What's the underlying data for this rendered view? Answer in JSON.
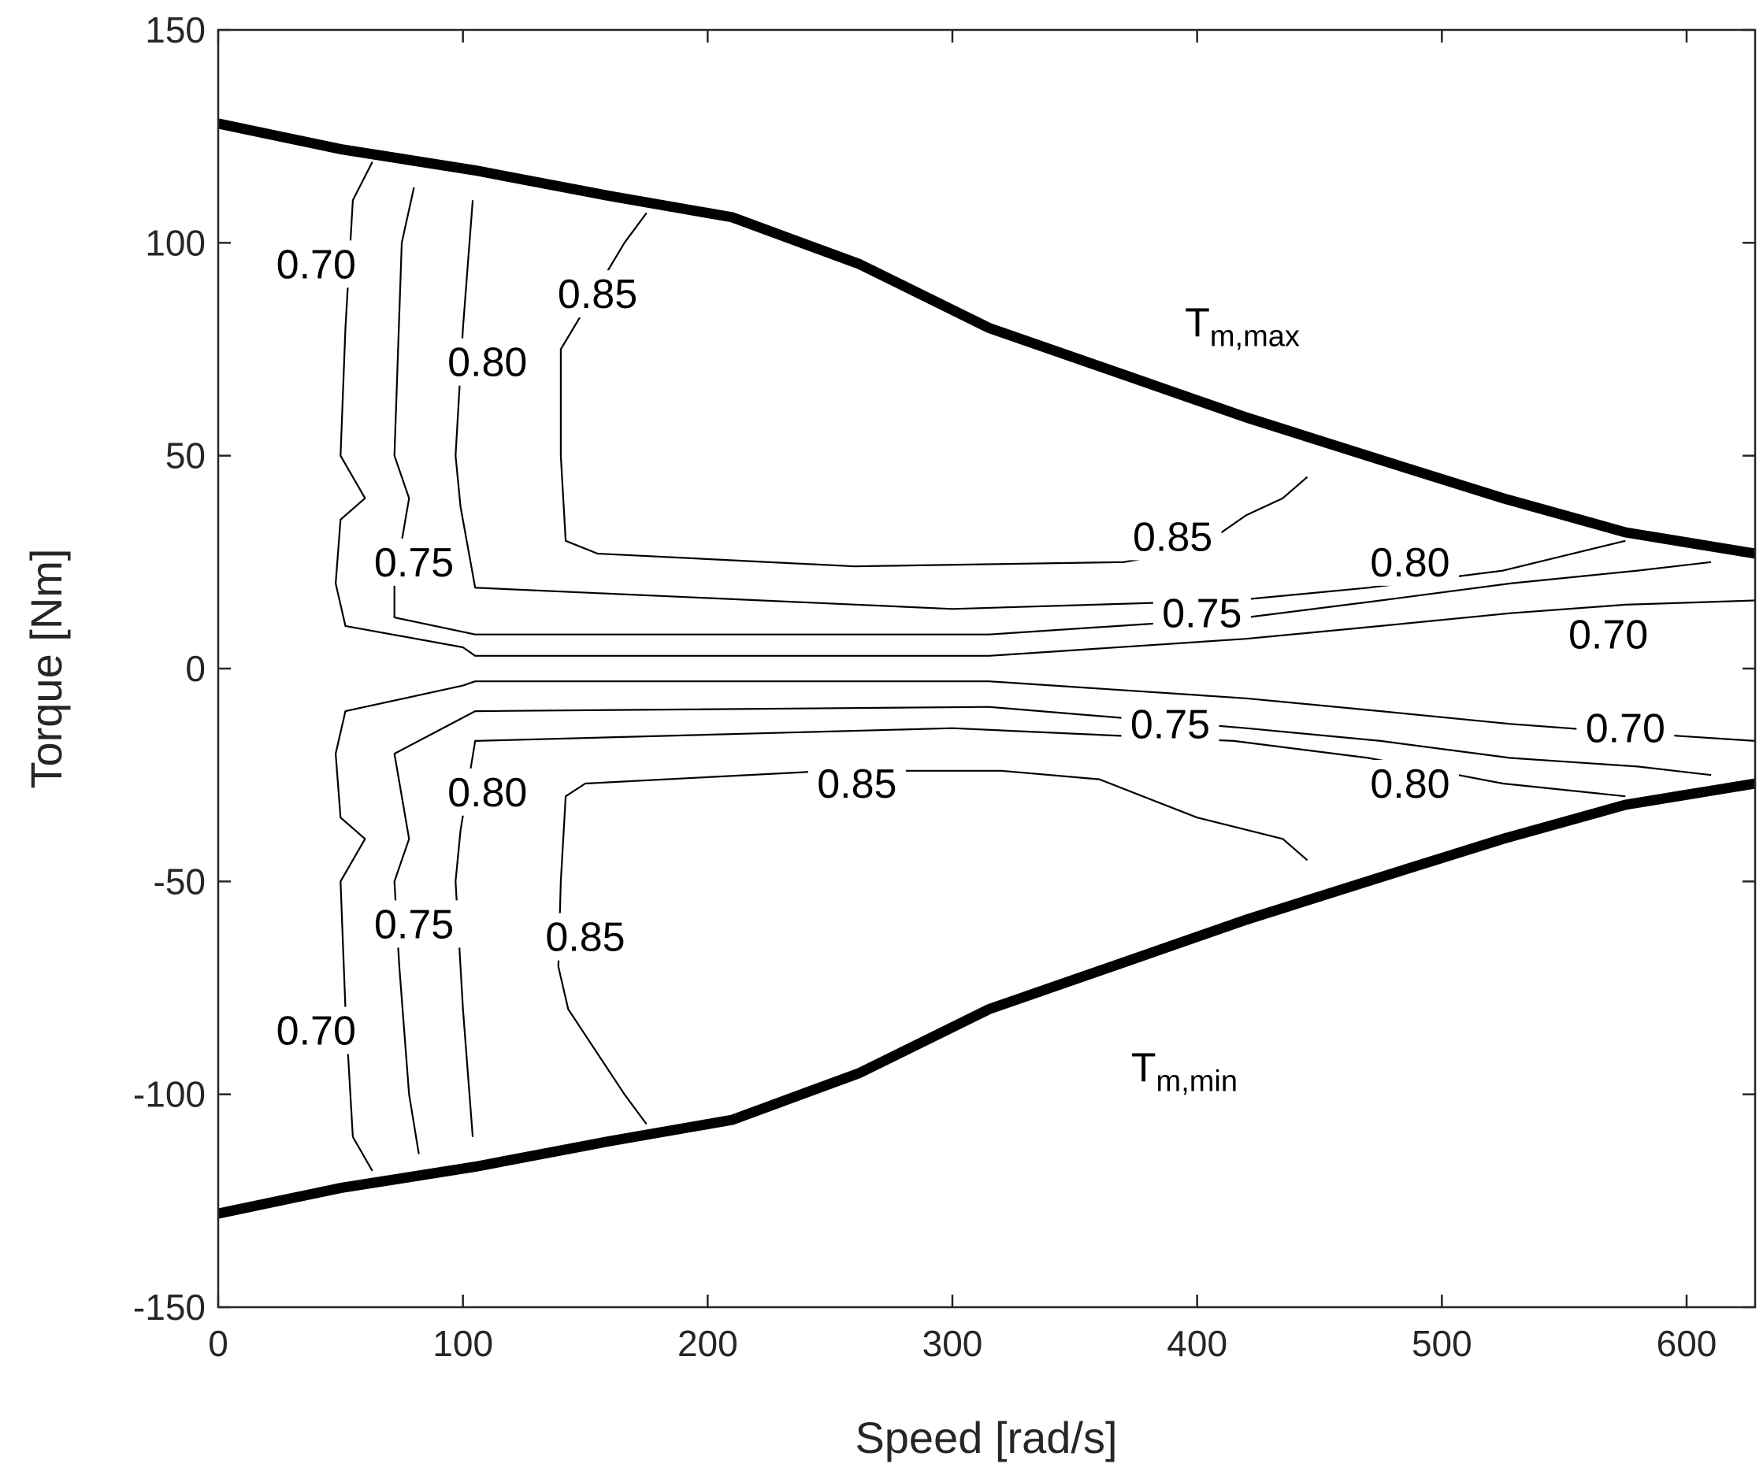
{
  "chart_data": {
    "type": "line",
    "xlabel": "Speed [rad/s]",
    "ylabel": "Torque [Nm]",
    "xlim": [
      0,
      628
    ],
    "ylim": [
      -150,
      150
    ],
    "xticks": [
      0,
      100,
      200,
      300,
      400,
      500,
      600
    ],
    "yticks": [
      -150,
      -100,
      -50,
      0,
      50,
      100,
      150
    ],
    "grid": false,
    "envelope": [
      {
        "name": "T_max",
        "label_main": "T",
        "label_sub": "m,max",
        "label_at": [
          395,
          78
        ],
        "points": [
          [
            0,
            128
          ],
          [
            50,
            122
          ],
          [
            105,
            117
          ],
          [
            160,
            111
          ],
          [
            210,
            106
          ],
          [
            262,
            95
          ],
          [
            315,
            80
          ],
          [
            370,
            69
          ],
          [
            420,
            59
          ],
          [
            475,
            49
          ],
          [
            525,
            40
          ],
          [
            575,
            32
          ],
          [
            628,
            27
          ]
        ]
      },
      {
        "name": "T_min",
        "label_main": "T",
        "label_sub": "m,min",
        "label_at": [
          373,
          -97
        ],
        "points": [
          [
            0,
            -128
          ],
          [
            50,
            -122
          ],
          [
            105,
            -117
          ],
          [
            160,
            -111
          ],
          [
            210,
            -106
          ],
          [
            262,
            -95
          ],
          [
            315,
            -80
          ],
          [
            370,
            -69
          ],
          [
            420,
            -59
          ],
          [
            475,
            -49
          ],
          [
            525,
            -40
          ],
          [
            575,
            -32
          ],
          [
            628,
            -27
          ]
        ]
      }
    ],
    "contours": [
      {
        "level": "0.70",
        "points": [
          [
            63,
            119
          ],
          [
            55,
            110
          ],
          [
            52,
            80
          ],
          [
            50,
            50
          ],
          [
            60,
            40
          ],
          [
            50,
            35
          ],
          [
            48,
            20
          ],
          [
            52,
            10
          ],
          [
            100,
            5
          ],
          [
            105,
            3
          ],
          [
            315,
            3
          ],
          [
            420,
            7
          ],
          [
            475,
            10
          ],
          [
            528,
            13
          ],
          [
            575,
            15
          ],
          [
            628,
            16
          ]
        ]
      },
      {
        "level": "0.75",
        "points": [
          [
            80,
            113
          ],
          [
            75,
            100
          ],
          [
            72,
            50
          ],
          [
            78,
            40
          ],
          [
            72,
            20
          ],
          [
            72,
            12
          ],
          [
            105,
            8
          ],
          [
            315,
            8
          ],
          [
            420,
            12
          ],
          [
            475,
            16
          ],
          [
            528,
            20
          ],
          [
            580,
            23
          ],
          [
            610,
            25
          ]
        ]
      },
      {
        "level": "0.80",
        "points": [
          [
            104,
            110
          ],
          [
            100,
            80
          ],
          [
            97,
            50
          ],
          [
            99,
            38
          ],
          [
            105,
            19
          ],
          [
            300,
            14
          ],
          [
            415,
            16
          ],
          [
            470,
            19
          ],
          [
            525,
            23
          ],
          [
            575,
            30
          ]
        ]
      },
      {
        "level": "0.85",
        "points": [
          [
            175,
            107
          ],
          [
            166,
            100
          ],
          [
            140,
            75
          ],
          [
            140,
            50
          ],
          [
            142,
            30
          ],
          [
            155,
            27
          ],
          [
            260,
            24
          ],
          [
            370,
            25
          ],
          [
            400,
            28
          ],
          [
            420,
            36
          ],
          [
            435,
            40
          ],
          [
            445,
            45
          ]
        ]
      },
      {
        "level": "0.70",
        "points": [
          [
            63,
            -118
          ],
          [
            55,
            -110
          ],
          [
            52,
            -80
          ],
          [
            50,
            -50
          ],
          [
            60,
            -40
          ],
          [
            50,
            -35
          ],
          [
            48,
            -20
          ],
          [
            52,
            -10
          ],
          [
            100,
            -4
          ],
          [
            105,
            -3
          ],
          [
            315,
            -3
          ],
          [
            420,
            -7
          ],
          [
            475,
            -10
          ],
          [
            528,
            -13
          ],
          [
            575,
            -15
          ],
          [
            628,
            -17
          ]
        ]
      },
      {
        "level": "0.75",
        "points": [
          [
            82,
            -114
          ],
          [
            78,
            -100
          ],
          [
            74,
            -70
          ],
          [
            72,
            -50
          ],
          [
            78,
            -40
          ],
          [
            72,
            -20
          ],
          [
            105,
            -10
          ],
          [
            315,
            -9
          ],
          [
            420,
            -14
          ],
          [
            475,
            -17
          ],
          [
            528,
            -21
          ],
          [
            580,
            -23
          ],
          [
            610,
            -25
          ]
        ]
      },
      {
        "level": "0.80",
        "points": [
          [
            104,
            -110
          ],
          [
            100,
            -80
          ],
          [
            97,
            -50
          ],
          [
            99,
            -38
          ],
          [
            105,
            -17
          ],
          [
            300,
            -14
          ],
          [
            415,
            -17
          ],
          [
            470,
            -21
          ],
          [
            525,
            -27
          ],
          [
            575,
            -30
          ]
        ]
      },
      {
        "level": "0.85",
        "points": [
          [
            175,
            -107
          ],
          [
            166,
            -100
          ],
          [
            143,
            -80
          ],
          [
            139,
            -70
          ],
          [
            140,
            -50
          ],
          [
            142,
            -30
          ],
          [
            150,
            -27
          ],
          [
            250,
            -24
          ],
          [
            320,
            -24
          ],
          [
            360,
            -26
          ],
          [
            400,
            -35
          ],
          [
            435,
            -40
          ],
          [
            445,
            -45
          ]
        ]
      }
    ],
    "contour_labels": [
      {
        "text": "0.70",
        "x": 40,
        "y": 95
      },
      {
        "text": "0.80",
        "x": 110,
        "y": 72
      },
      {
        "text": "0.85",
        "x": 155,
        "y": 88
      },
      {
        "text": "0.75",
        "x": 80,
        "y": 25
      },
      {
        "text": "0.85",
        "x": 390,
        "y": 31
      },
      {
        "text": "0.80",
        "x": 487,
        "y": 25
      },
      {
        "text": "0.75",
        "x": 402,
        "y": 13
      },
      {
        "text": "0.70",
        "x": 568,
        "y": 8
      },
      {
        "text": "0.75",
        "x": 389,
        "y": -13
      },
      {
        "text": "0.70",
        "x": 575,
        "y": -14
      },
      {
        "text": "0.80",
        "x": 110,
        "y": -29
      },
      {
        "text": "0.85",
        "x": 261,
        "y": -27
      },
      {
        "text": "0.80",
        "x": 487,
        "y": -27
      },
      {
        "text": "0.75",
        "x": 80,
        "y": -60
      },
      {
        "text": "0.85",
        "x": 150,
        "y": -63
      },
      {
        "text": "0.70",
        "x": 40,
        "y": -85
      }
    ]
  }
}
